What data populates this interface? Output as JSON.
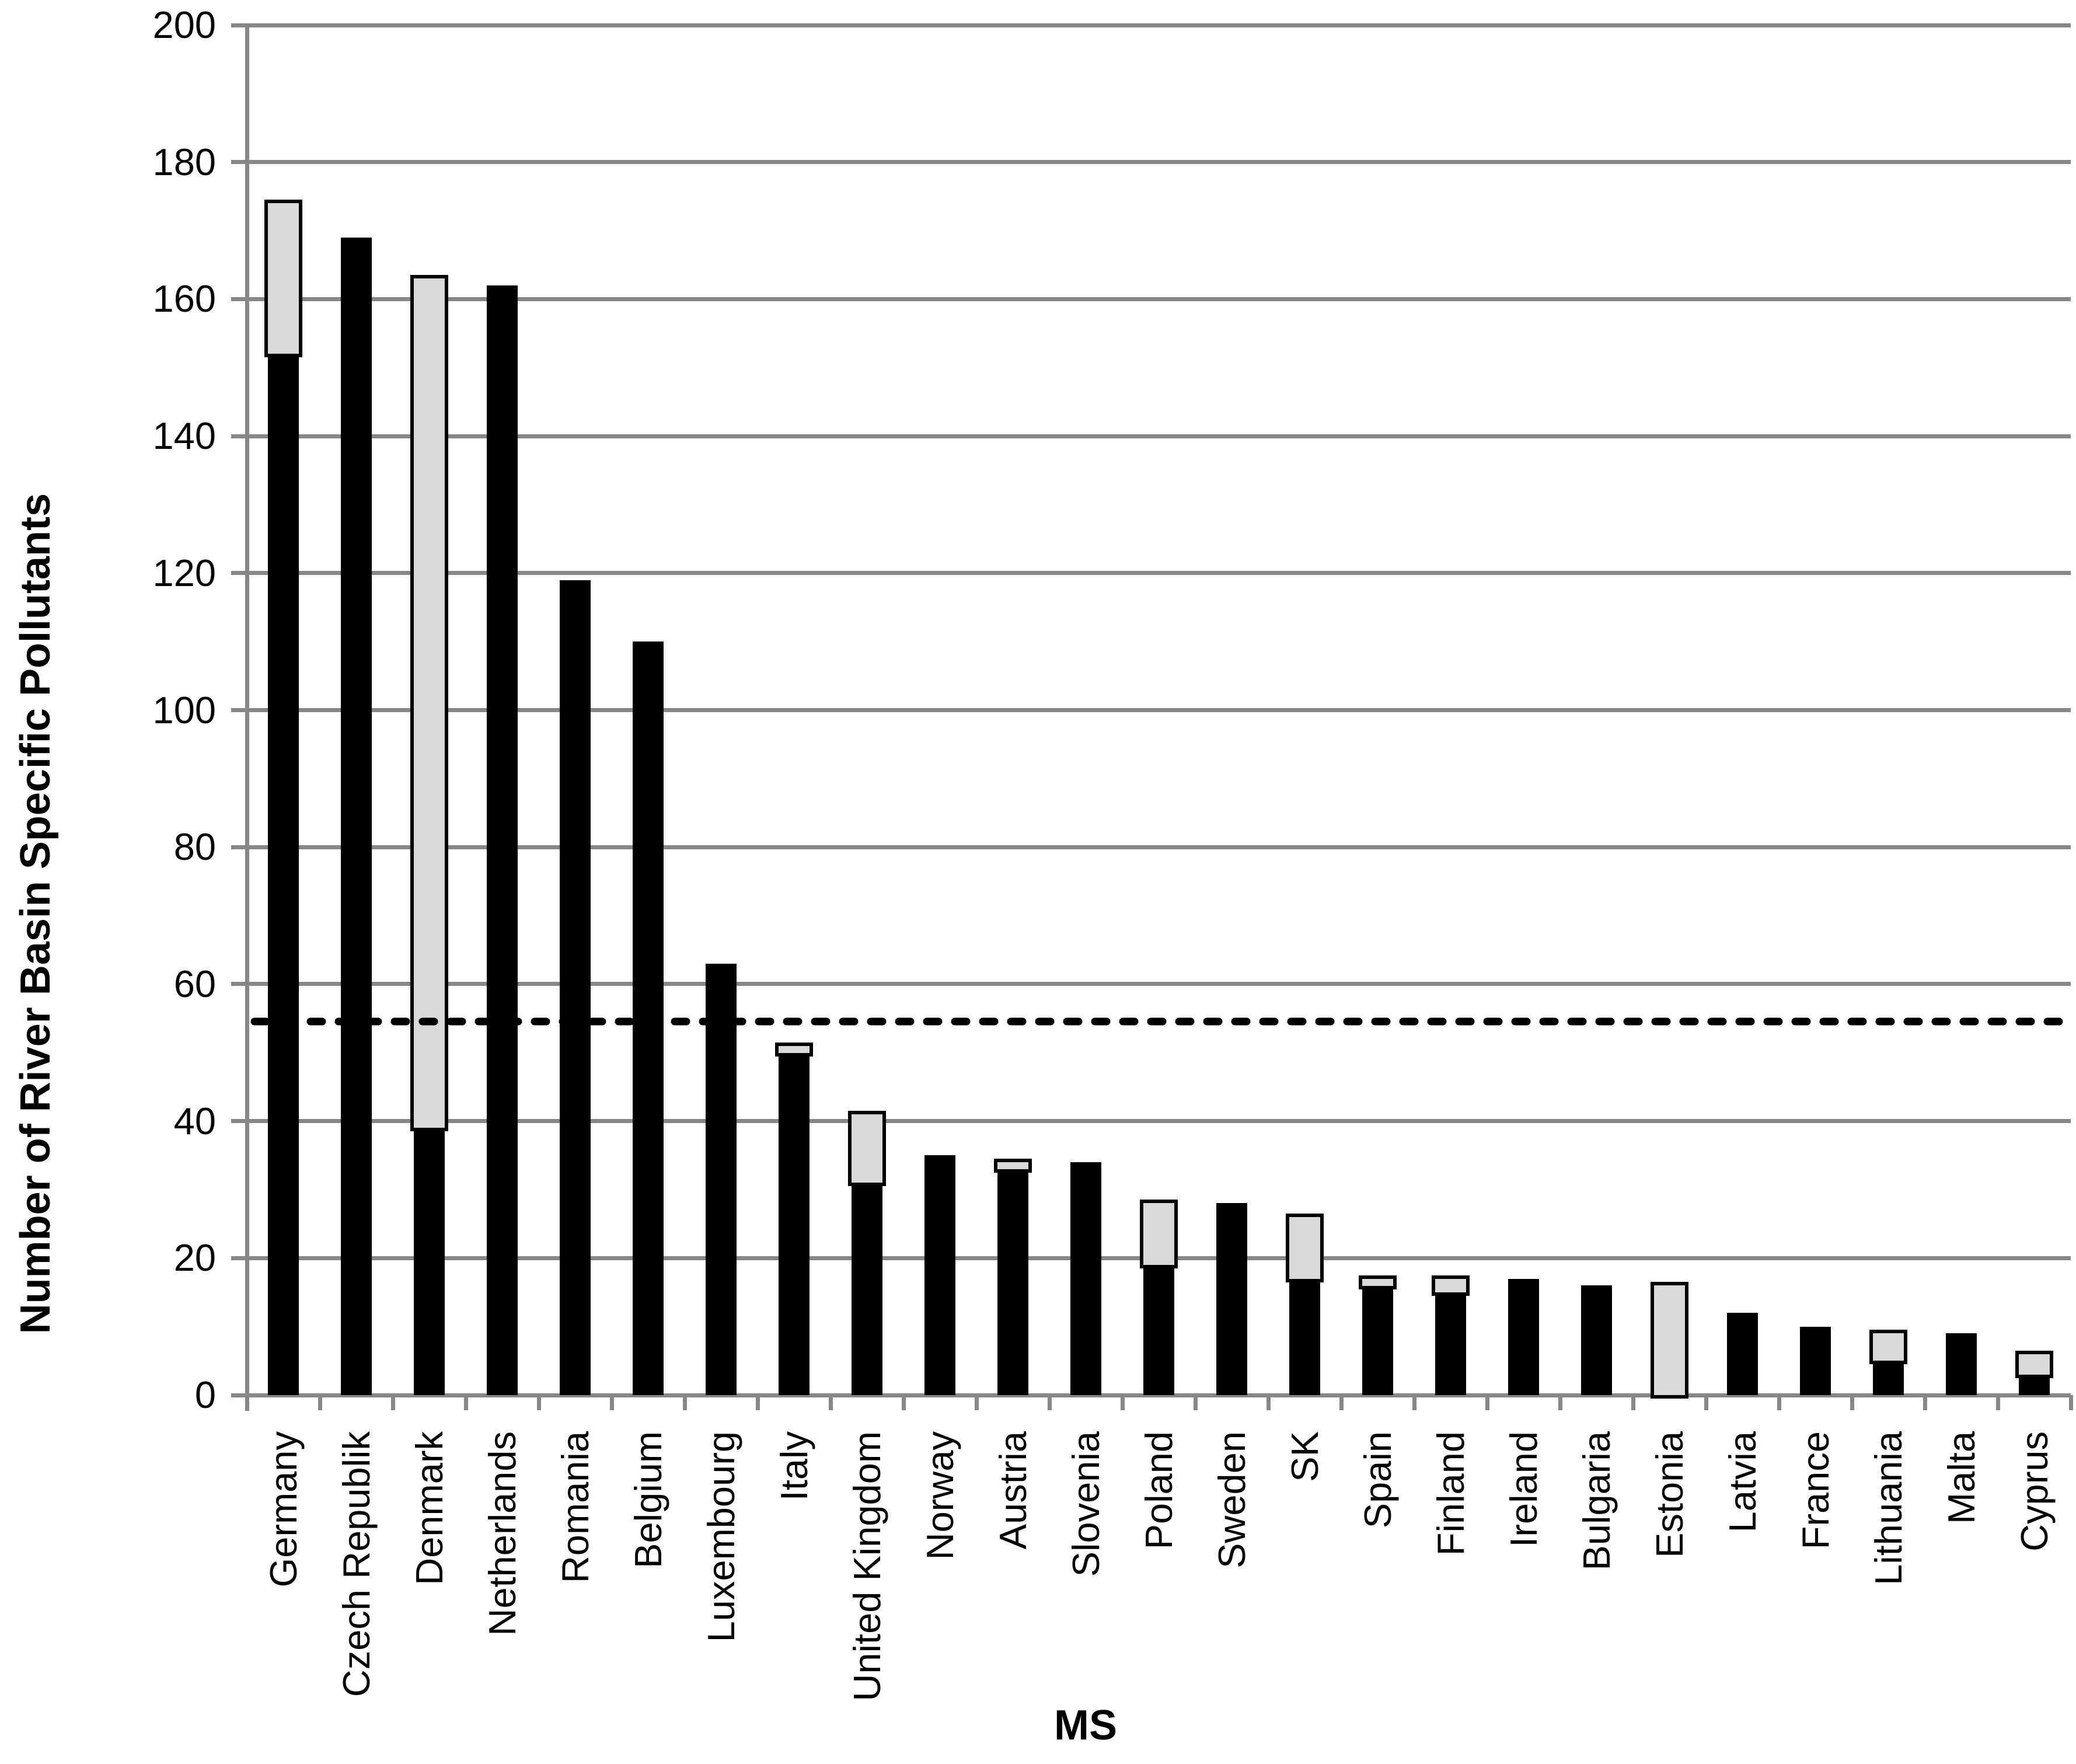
{
  "chart_data": {
    "type": "bar",
    "stacked": true,
    "orientation": "vertical",
    "title": "",
    "xlabel": "MS",
    "ylabel": "Number of River Basin Specific Pollutants",
    "ylim": [
      0,
      200
    ],
    "ytick_step": 20,
    "ytick_labels": [
      "0",
      "20",
      "40",
      "60",
      "80",
      "100",
      "120",
      "140",
      "160",
      "180",
      "200"
    ],
    "grid": true,
    "legend": "none",
    "categories": [
      "Germany",
      "Czech Republik",
      "Denmark",
      "Netherlands",
      "Romania",
      "Belgium",
      "Luxembourg",
      "Italy",
      "United Kingdom",
      "Norway",
      "Austria",
      "Slovenia",
      "Poland",
      "Sweden",
      "SK",
      "Spain",
      "Finland",
      "Ireland",
      "Bulgaria",
      "Estonia",
      "Latvia",
      "France",
      "Lithuania",
      "Malta",
      "Cyprus"
    ],
    "series": [
      {
        "name": "black-segment",
        "color": "#000000",
        "values": [
          152,
          169,
          39,
          162,
          119,
          110,
          63,
          50,
          31,
          35,
          33,
          34,
          19,
          28,
          17,
          16,
          15,
          17,
          16,
          0,
          12,
          10,
          5,
          9,
          3
        ]
      },
      {
        "name": "gray-segment",
        "color": "#d9d9d9",
        "values": [
          22,
          0,
          124,
          0,
          0,
          0,
          0,
          1,
          10,
          0,
          1,
          0,
          9,
          0,
          9,
          1,
          2,
          0,
          0,
          16,
          0,
          0,
          4,
          0,
          3
        ]
      }
    ],
    "stack_totals": [
      174,
      169,
      163,
      162,
      119,
      110,
      63,
      51,
      41,
      35,
      34,
      34,
      28,
      28,
      26,
      17,
      17,
      17,
      16,
      16,
      12,
      10,
      9,
      9,
      6
    ],
    "reference_line": {
      "value": 54.5,
      "style": "dashed",
      "color": "#000000"
    },
    "colors": {
      "axis_and_grid": "#878787",
      "bar_fill_black": "#000000",
      "bar_fill_gray": "#d9d9d9",
      "bar_border": "#000000",
      "background": "#ffffff",
      "text": "#000000"
    }
  }
}
